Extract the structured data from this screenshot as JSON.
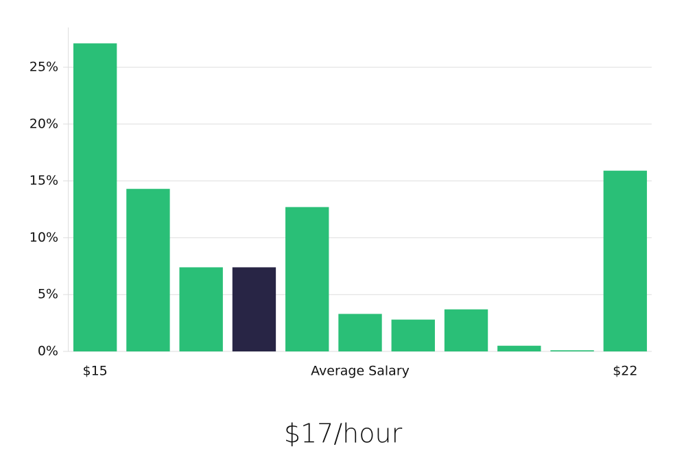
{
  "chart_data": {
    "type": "bar",
    "caption": "$17/hour",
    "x_label": "Average Salary",
    "categories": [
      "$15",
      null,
      null,
      null,
      null,
      null,
      null,
      null,
      null,
      null,
      "$22"
    ],
    "values": [
      27.1,
      14.3,
      7.4,
      7.4,
      12.7,
      3.3,
      2.8,
      3.7,
      0.5,
      0.1,
      15.9
    ],
    "colors": [
      "#2abf77",
      "#2abf77",
      "#2abf77",
      "#282545",
      "#2abf77",
      "#2abf77",
      "#2abf77",
      "#2abf77",
      "#2abf77",
      "#2abf77",
      "#2abf77"
    ],
    "ylim": [
      0,
      28.5
    ],
    "yticks": [
      {
        "value": 0,
        "label": "0%"
      },
      {
        "value": 5,
        "label": "5%"
      },
      {
        "value": 10,
        "label": "10%"
      },
      {
        "value": 15,
        "label": "15%"
      },
      {
        "value": 20,
        "label": "20%"
      },
      {
        "value": 25,
        "label": "25%"
      }
    ],
    "grid": true
  }
}
